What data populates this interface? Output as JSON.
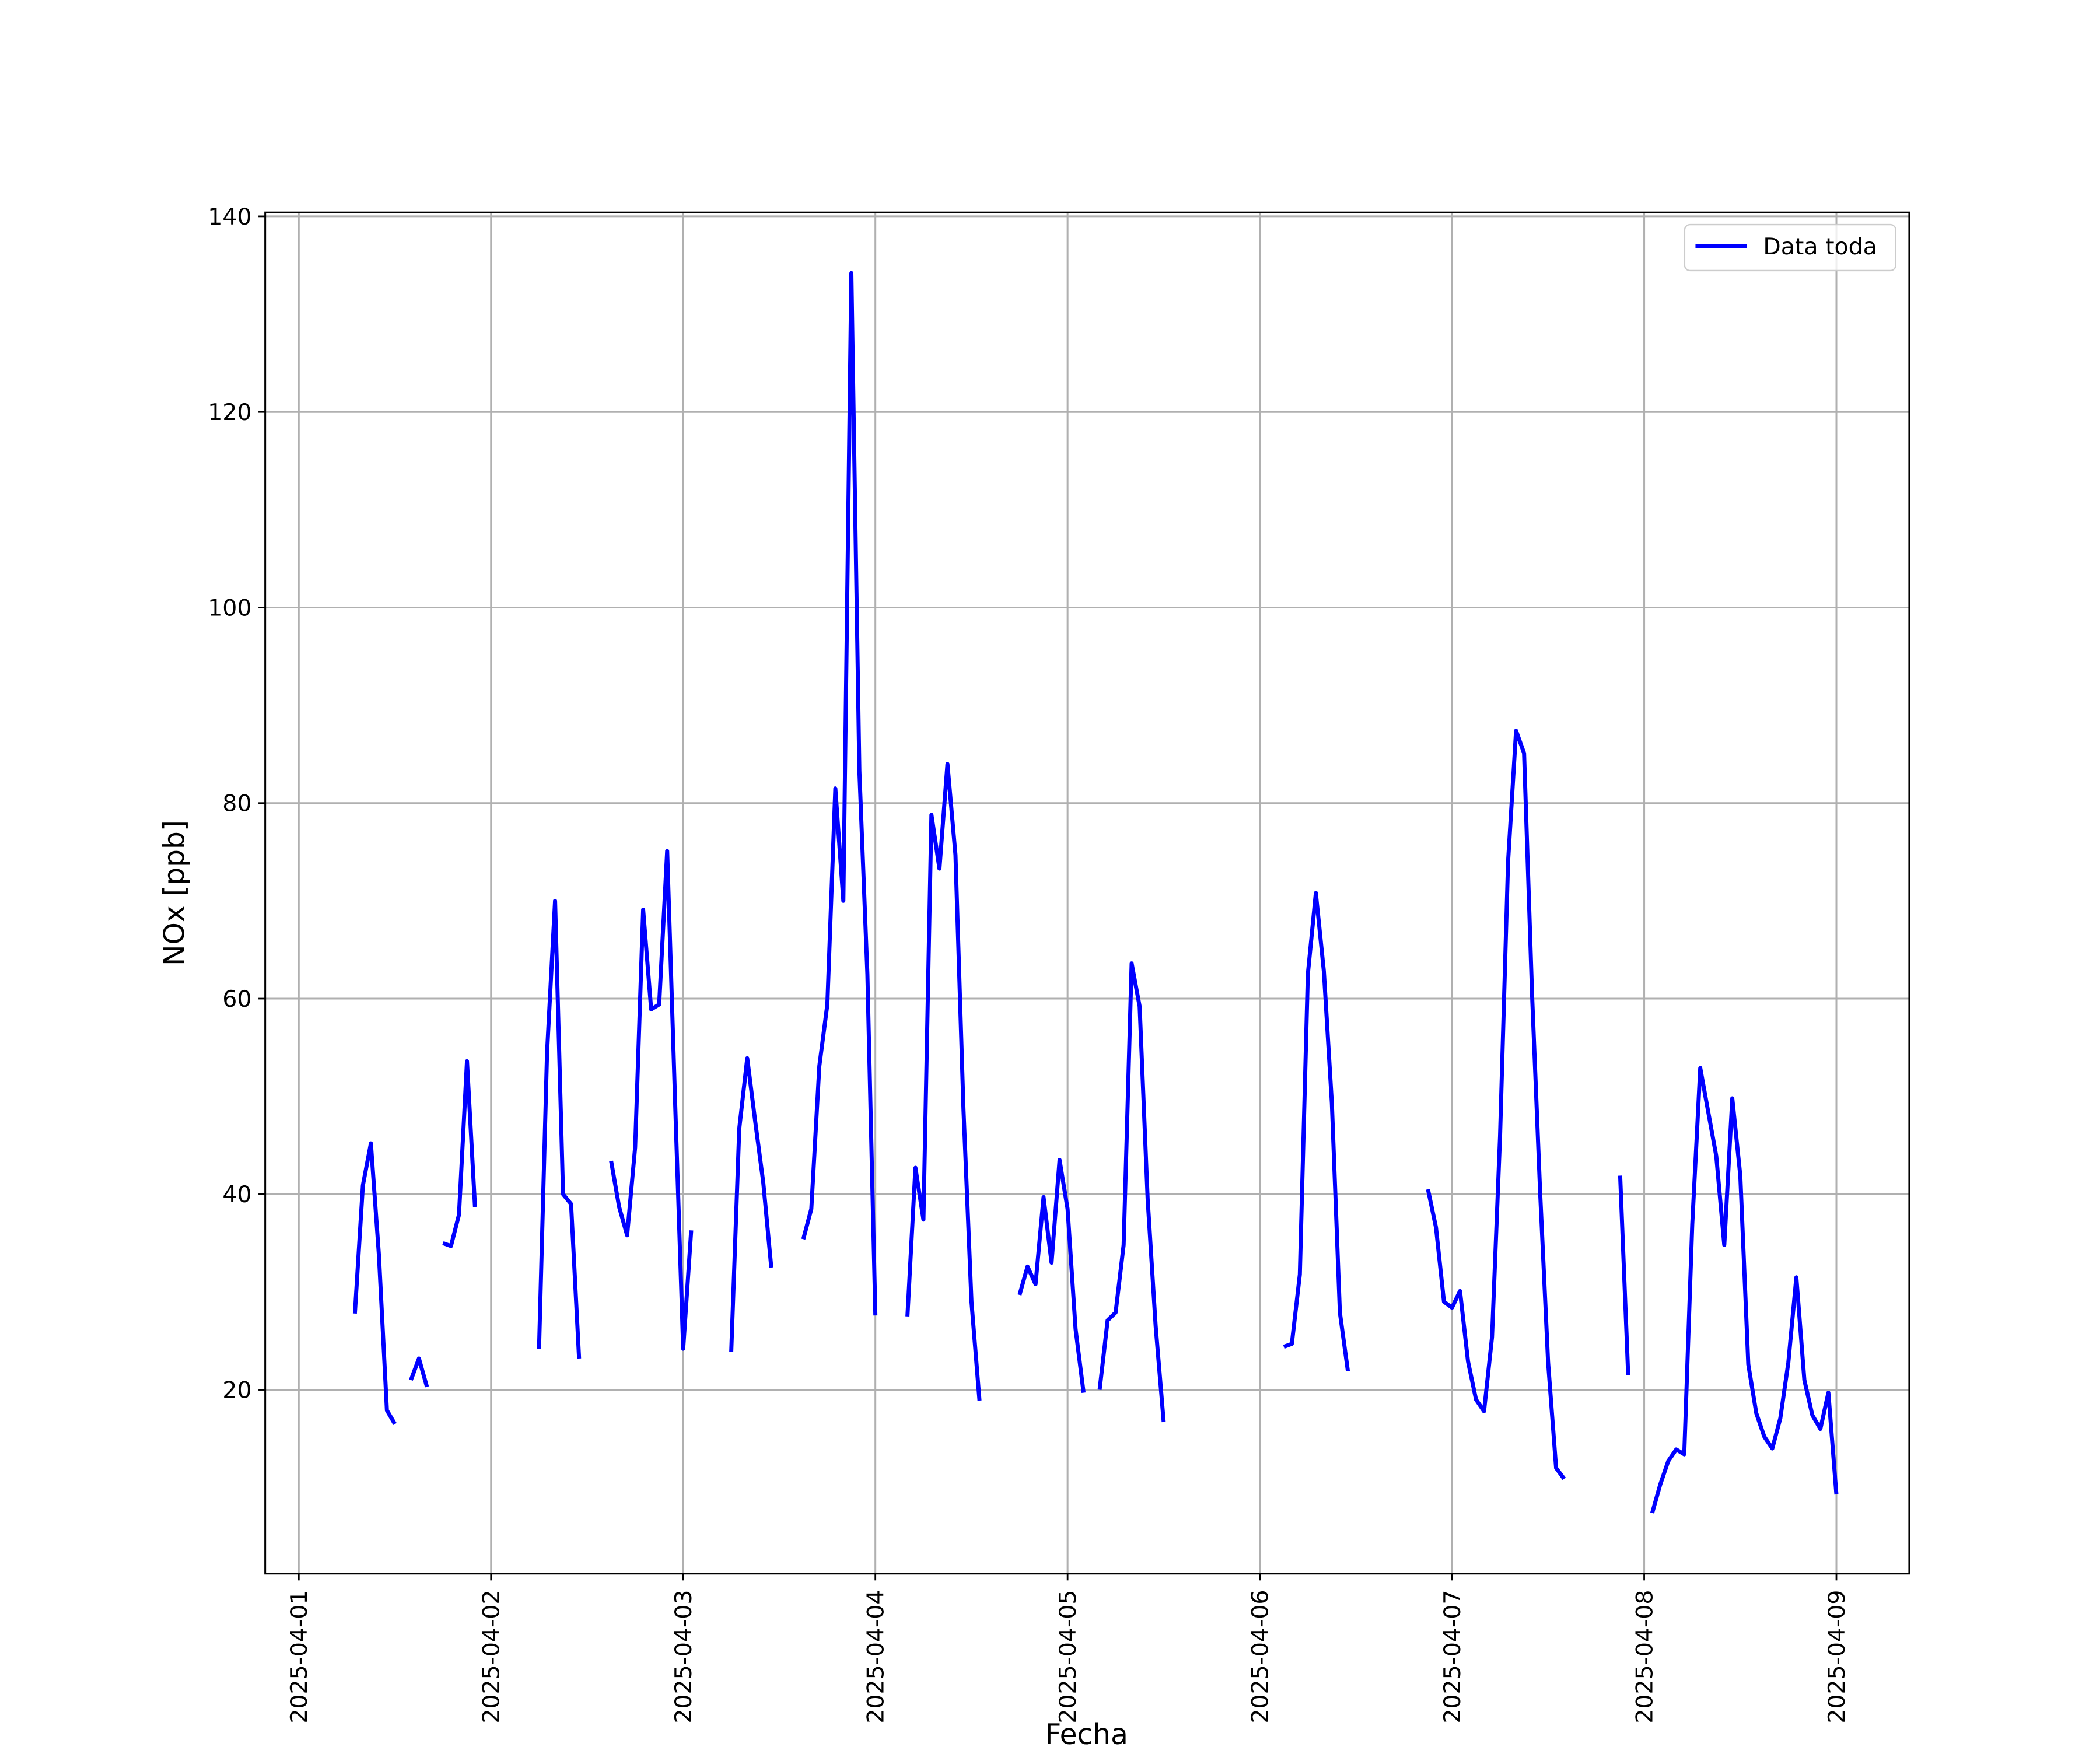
{
  "chart_data": {
    "type": "line",
    "xlabel": "Fecha",
    "ylabel": "NOx [ppb]",
    "x": [
      7,
      8,
      9,
      10,
      11,
      12,
      13,
      14,
      15,
      16,
      17,
      18,
      19,
      20,
      21,
      22,
      23,
      24,
      25,
      26,
      27,
      28,
      29,
      30,
      31,
      32,
      33,
      34,
      35,
      36,
      37,
      38,
      39,
      40,
      41,
      42,
      43,
      44,
      45,
      46,
      47,
      48,
      49,
      50,
      51,
      52,
      53,
      54,
      55,
      56,
      57,
      58,
      59,
      60,
      61,
      62,
      63,
      64,
      65,
      66,
      67,
      68,
      69,
      70,
      71,
      72,
      73,
      74,
      75,
      76,
      77,
      78,
      79,
      80,
      81,
      82,
      83,
      84,
      85,
      86,
      87,
      88,
      89,
      90,
      91,
      92,
      93,
      94,
      95,
      96,
      97,
      98,
      99,
      100,
      101,
      102,
      103,
      104,
      105,
      106,
      107,
      108,
      109,
      110,
      111,
      112,
      113,
      114,
      115,
      116,
      117,
      118,
      119,
      120,
      121,
      122,
      123,
      124,
      125,
      126,
      127,
      128,
      129,
      130,
      131,
      132,
      133,
      134,
      135,
      136,
      137,
      138,
      139,
      140,
      141,
      142,
      143,
      144,
      145,
      146,
      147,
      148,
      149,
      150,
      151,
      152,
      153,
      154,
      155,
      156,
      157,
      158,
      159,
      160,
      161,
      162,
      163,
      164,
      165,
      166,
      167,
      168,
      169,
      170,
      171,
      172,
      173,
      174,
      175,
      176,
      177,
      178,
      179,
      180,
      181,
      182,
      183,
      184,
      185,
      186,
      187,
      188,
      189,
      190,
      191,
      192
    ],
    "series": [
      {
        "name": "Data toda",
        "color": "#0000ff",
        "values": [
          27.8,
          40.9,
          45.2,
          33.8,
          17.9,
          16.5,
          null,
          21.0,
          23.2,
          20.3,
          null,
          35.0,
          34.7,
          37.9,
          53.6,
          38.7,
          null,
          null,
          null,
          null,
          null,
          null,
          null,
          24.2,
          54.5,
          70.0,
          40.0,
          39.0,
          23.2,
          null,
          null,
          null,
          43.4,
          38.7,
          35.8,
          44.8,
          69.1,
          58.9,
          59.4,
          75.1,
          49.2,
          24.2,
          36.3,
          null,
          null,
          null,
          null,
          23.9,
          46.7,
          53.9,
          47.4,
          41.2,
          32.5,
          null,
          null,
          null,
          35.4,
          38.5,
          53.1,
          59.4,
          81.5,
          70.0,
          134.2,
          83.3,
          62.5,
          27.6,
          null,
          null,
          null,
          27.5,
          42.7,
          37.4,
          78.8,
          73.3,
          84.0,
          74.7,
          48.7,
          29.0,
          18.9,
          null,
          null,
          null,
          null,
          29.7,
          32.6,
          30.8,
          39.7,
          33.0,
          43.5,
          38.5,
          26.2,
          19.7,
          null,
          20.0,
          27.1,
          27.9,
          34.8,
          63.6,
          59.2,
          39.5,
          26.5,
          16.7,
          null,
          null,
          null,
          null,
          null,
          null,
          null,
          null,
          null,
          null,
          null,
          null,
          null,
          null,
          24.4,
          24.7,
          31.8,
          62.5,
          70.8,
          62.8,
          49.3,
          27.9,
          21.9,
          null,
          null,
          null,
          null,
          null,
          null,
          null,
          null,
          null,
          40.5,
          36.6,
          29.0,
          28.4,
          30.1,
          22.9,
          19.0,
          17.8,
          25.4,
          45.9,
          74.0,
          87.4,
          85.1,
          60.4,
          40.3,
          22.8,
          12.0,
          10.9,
          null,
          null,
          null,
          null,
          null,
          null,
          41.9,
          21.5,
          null,
          null,
          7.4,
          10.3,
          12.7,
          13.9,
          13.4,
          36.9,
          52.9,
          48.4,
          43.9,
          34.8,
          49.8,
          41.9,
          22.6,
          17.6,
          15.2,
          14.0,
          17.1,
          22.8,
          31.5,
          21.0,
          17.4,
          16.0,
          19.7,
          9.3
        ]
      }
    ],
    "xlim": [
      -4.2,
      201.1
    ],
    "xticks": [
      {
        "value": 0,
        "label": "2025-04-01"
      },
      {
        "value": 24,
        "label": "2025-04-02"
      },
      {
        "value": 48,
        "label": "2025-04-03"
      },
      {
        "value": 72,
        "label": "2025-04-04"
      },
      {
        "value": 96,
        "label": "2025-04-05"
      },
      {
        "value": 120,
        "label": "2025-04-06"
      },
      {
        "value": 144,
        "label": "2025-04-07"
      },
      {
        "value": 168,
        "label": "2025-04-08"
      },
      {
        "value": 192,
        "label": "2025-04-09"
      }
    ],
    "ylim": [
      1.2,
      140.4
    ],
    "yticks": [
      20,
      40,
      60,
      80,
      100,
      120,
      140
    ],
    "grid": true,
    "legend": "upper right"
  }
}
